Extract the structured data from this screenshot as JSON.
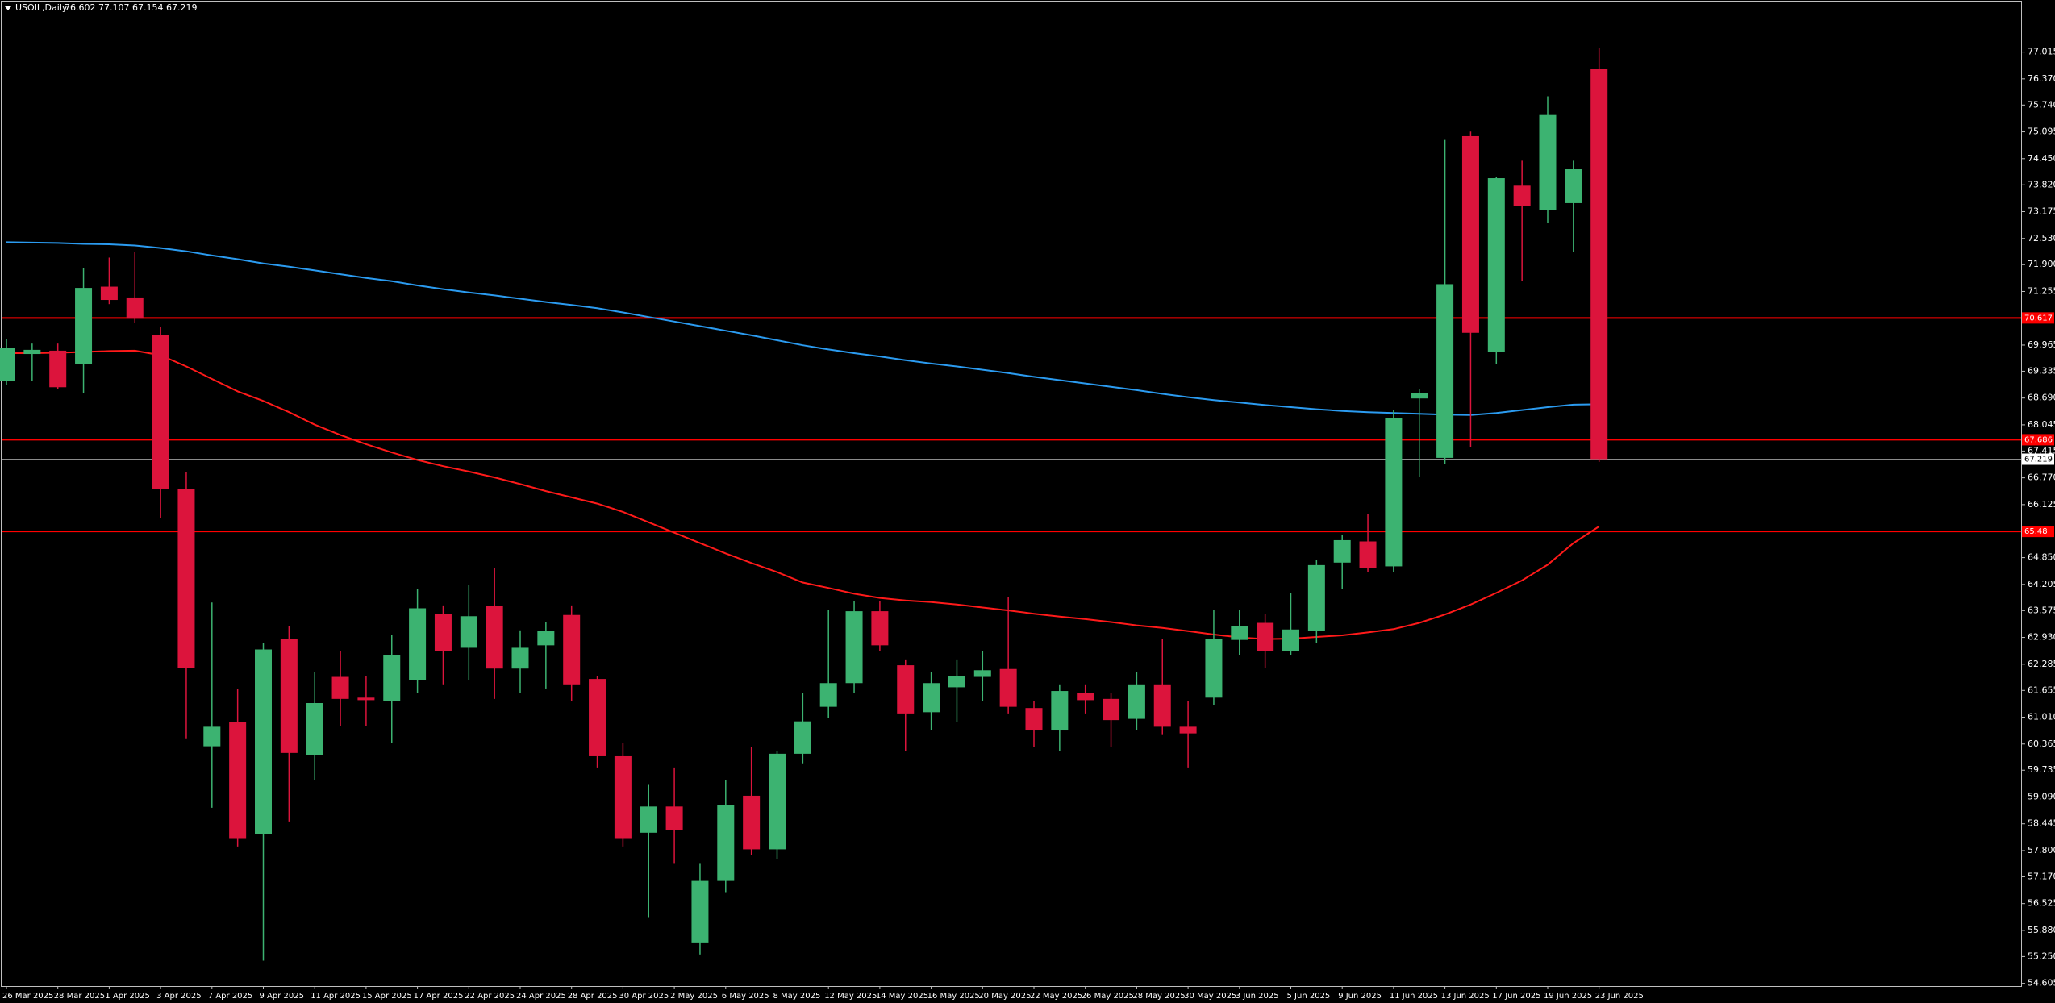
{
  "chart_data": {
    "type": "candlestick",
    "symbol": "USOIL,Daily",
    "categories": [
      "26 Mar 2025",
      null,
      "28 Mar 2025",
      null,
      "1 Apr 2025",
      null,
      "3 Apr 2025",
      null,
      "7 Apr 2025",
      null,
      "9 Apr 2025",
      null,
      "11 Apr 2025",
      null,
      "15 Apr 2025",
      null,
      "17 Apr 2025",
      null,
      "22 Apr 2025",
      null,
      "24 Apr 2025",
      null,
      "28 Apr 2025",
      null,
      "30 Apr 2025",
      null,
      "2 May 2025",
      null,
      "6 May 2025",
      null,
      "8 May 2025",
      null,
      "12 May 2025",
      null,
      "14 May 2025",
      null,
      "16 May 2025",
      null,
      "20 May 2025",
      null,
      "22 May 2025",
      null,
      "26 May 2025",
      null,
      "28 May 2025",
      null,
      "30 May 2025",
      null,
      "3 Jun 2025",
      null,
      "5 Jun 2025",
      null,
      "9 Jun 2025",
      null,
      "11 Jun 2025",
      null,
      "13 Jun 2025",
      null,
      "17 Jun 2025",
      null,
      "19 Jun 2025",
      null,
      "23 Jun 2025"
    ],
    "open": [
      69.1,
      69.75,
      69.83,
      69.51,
      71.37,
      71.11,
      70.2,
      66.5,
      60.31,
      60.9,
      58.2,
      62.9,
      60.09,
      61.98,
      61.48,
      61.39,
      61.9,
      63.5,
      62.68,
      63.69,
      62.18,
      62.74,
      63.47,
      61.93,
      60.07,
      58.23,
      58.86,
      55.59,
      57.07,
      59.12,
      57.83,
      60.13,
      61.26,
      61.83,
      63.56,
      62.26,
      61.13,
      61.73,
      61.98,
      62.17,
      61.23,
      60.69,
      61.6,
      61.45,
      60.97,
      61.8,
      60.78,
      61.48,
      62.87,
      63.28,
      62.61,
      63.09,
      64.73,
      65.24,
      64.64,
      68.68,
      67.25,
      74.99,
      69.79,
      73.8,
      73.22,
      73.38,
      76.602
    ],
    "high": [
      70.1,
      70.0,
      70.0,
      71.81,
      72.07,
      72.2,
      70.4,
      66.9,
      63.77,
      61.7,
      62.8,
      63.2,
      62.1,
      62.6,
      62.0,
      63.0,
      64.1,
      63.7,
      64.2,
      64.6,
      63.1,
      63.3,
      63.7,
      62.0,
      60.4,
      59.4,
      59.8,
      57.5,
      59.5,
      60.3,
      60.2,
      61.6,
      63.6,
      63.8,
      63.8,
      62.4,
      62.1,
      62.4,
      62.6,
      63.9,
      61.4,
      61.8,
      61.8,
      61.6,
      62.1,
      62.9,
      61.4,
      63.6,
      63.6,
      63.5,
      64.0,
      64.8,
      65.4,
      65.9,
      68.4,
      68.9,
      74.9,
      75.1,
      74.0,
      74.4,
      75.95,
      74.4,
      77.107
    ],
    "low": [
      69.0,
      69.1,
      68.9,
      68.82,
      70.95,
      70.5,
      65.8,
      60.5,
      58.83,
      57.9,
      55.15,
      58.5,
      59.5,
      60.8,
      60.8,
      60.4,
      61.6,
      61.8,
      61.9,
      61.45,
      61.6,
      61.7,
      61.4,
      59.8,
      57.9,
      56.2,
      57.5,
      55.3,
      56.8,
      57.7,
      57.6,
      59.9,
      61.0,
      61.6,
      62.6,
      60.2,
      60.7,
      60.9,
      61.4,
      61.1,
      60.3,
      60.2,
      61.1,
      60.3,
      60.7,
      60.6,
      59.8,
      61.3,
      62.5,
      62.2,
      62.5,
      62.8,
      64.1,
      64.5,
      64.5,
      66.8,
      67.1,
      67.5,
      69.5,
      71.5,
      72.9,
      72.2,
      67.154
    ],
    "close": [
      69.9,
      69.85,
      68.95,
      71.34,
      71.05,
      70.6,
      66.5,
      62.2,
      60.78,
      58.1,
      62.64,
      60.15,
      61.35,
      61.45,
      61.42,
      62.5,
      63.63,
      62.6,
      63.44,
      62.18,
      62.68,
      63.09,
      61.8,
      60.07,
      58.1,
      58.86,
      58.3,
      57.07,
      58.9,
      57.83,
      60.13,
      60.91,
      61.83,
      63.56,
      62.74,
      61.1,
      61.83,
      62.0,
      62.14,
      61.26,
      60.69,
      61.64,
      61.42,
      60.94,
      61.8,
      60.78,
      60.62,
      62.9,
      63.2,
      62.61,
      63.12,
      64.67,
      65.27,
      64.6,
      68.21,
      68.81,
      71.43,
      70.26,
      73.98,
      73.32,
      75.5,
      74.2,
      67.219
    ],
    "up_color": "#3cb371",
    "down_color": "#dc143c",
    "lines": [
      {
        "color": "#2b9bf0",
        "values": [
          72.44,
          72.43,
          72.42,
          72.4,
          72.39,
          72.36,
          72.3,
          72.22,
          72.12,
          72.03,
          71.93,
          71.85,
          71.76,
          71.67,
          71.58,
          71.5,
          71.4,
          71.31,
          71.23,
          71.16,
          71.08,
          71.0,
          70.93,
          70.85,
          70.75,
          70.64,
          70.53,
          70.42,
          70.31,
          70.2,
          70.08,
          69.96,
          69.86,
          69.77,
          69.69,
          69.6,
          69.52,
          69.45,
          69.37,
          69.29,
          69.2,
          69.12,
          69.04,
          68.96,
          68.88,
          68.79,
          68.71,
          68.64,
          68.58,
          68.52,
          68.47,
          68.42,
          68.38,
          68.35,
          68.33,
          68.31,
          68.29,
          68.28,
          68.33,
          68.4,
          68.47,
          68.53,
          68.54
        ]
      },
      {
        "color": "#ff1a1a",
        "values": [
          69.77,
          69.77,
          69.78,
          69.8,
          69.82,
          69.83,
          69.72,
          69.45,
          69.15,
          68.85,
          68.62,
          68.35,
          68.05,
          67.8,
          67.58,
          67.38,
          67.2,
          67.05,
          66.92,
          66.78,
          66.62,
          66.45,
          66.3,
          66.15,
          65.95,
          65.7,
          65.45,
          65.2,
          64.95,
          64.72,
          64.5,
          64.25,
          64.12,
          63.98,
          63.88,
          63.82,
          63.78,
          63.72,
          63.65,
          63.58,
          63.5,
          63.43,
          63.37,
          63.3,
          63.22,
          63.16,
          63.08,
          63.0,
          62.93,
          62.89,
          62.9,
          62.94,
          62.98,
          63.05,
          63.13,
          63.28,
          63.48,
          63.72,
          64.0,
          64.3,
          64.68,
          65.2,
          65.6
        ]
      }
    ],
    "hlines": [
      {
        "value": 70.617,
        "color": "#ff0000"
      },
      {
        "value": 67.686,
        "color": "#ff0000"
      },
      {
        "value": 65.48,
        "color": "#ff0000"
      }
    ],
    "ylim": [
      54.54,
      78.21
    ],
    "yticks": [
      77.015,
      {
        "value": 76.37,
        "label": "76.370"
      },
      {
        "value": 75.74,
        "label": "75.740"
      },
      75.095,
      {
        "value": 74.45,
        "label": "74.450"
      },
      {
        "value": 73.82,
        "label": "73.820"
      },
      73.175,
      {
        "value": 72.53,
        "label": "72.530"
      },
      {
        "value": 71.9,
        "label": "71.900"
      },
      71.255,
      69.965,
      69.335,
      {
        "value": 68.69,
        "label": "68.690"
      },
      68.045,
      67.415,
      {
        "value": 66.77,
        "label": "66.770"
      },
      66.125,
      {
        "value": 64.85,
        "label": "64.850"
      },
      64.205,
      63.575,
      {
        "value": 62.93,
        "label": "62.930"
      },
      62.285,
      61.655,
      {
        "value": 61.01,
        "label": "61.010"
      },
      60.365,
      59.735,
      {
        "value": 59.09,
        "label": "59.090"
      },
      58.445,
      {
        "value": 57.8,
        "label": "57.800"
      },
      {
        "value": 57.17,
        "label": "57.170"
      },
      56.525,
      {
        "value": 55.88,
        "label": "55.880"
      },
      {
        "value": 55.25,
        "label": "55.250"
      },
      54.605
    ],
    "grid": false
  }
}
